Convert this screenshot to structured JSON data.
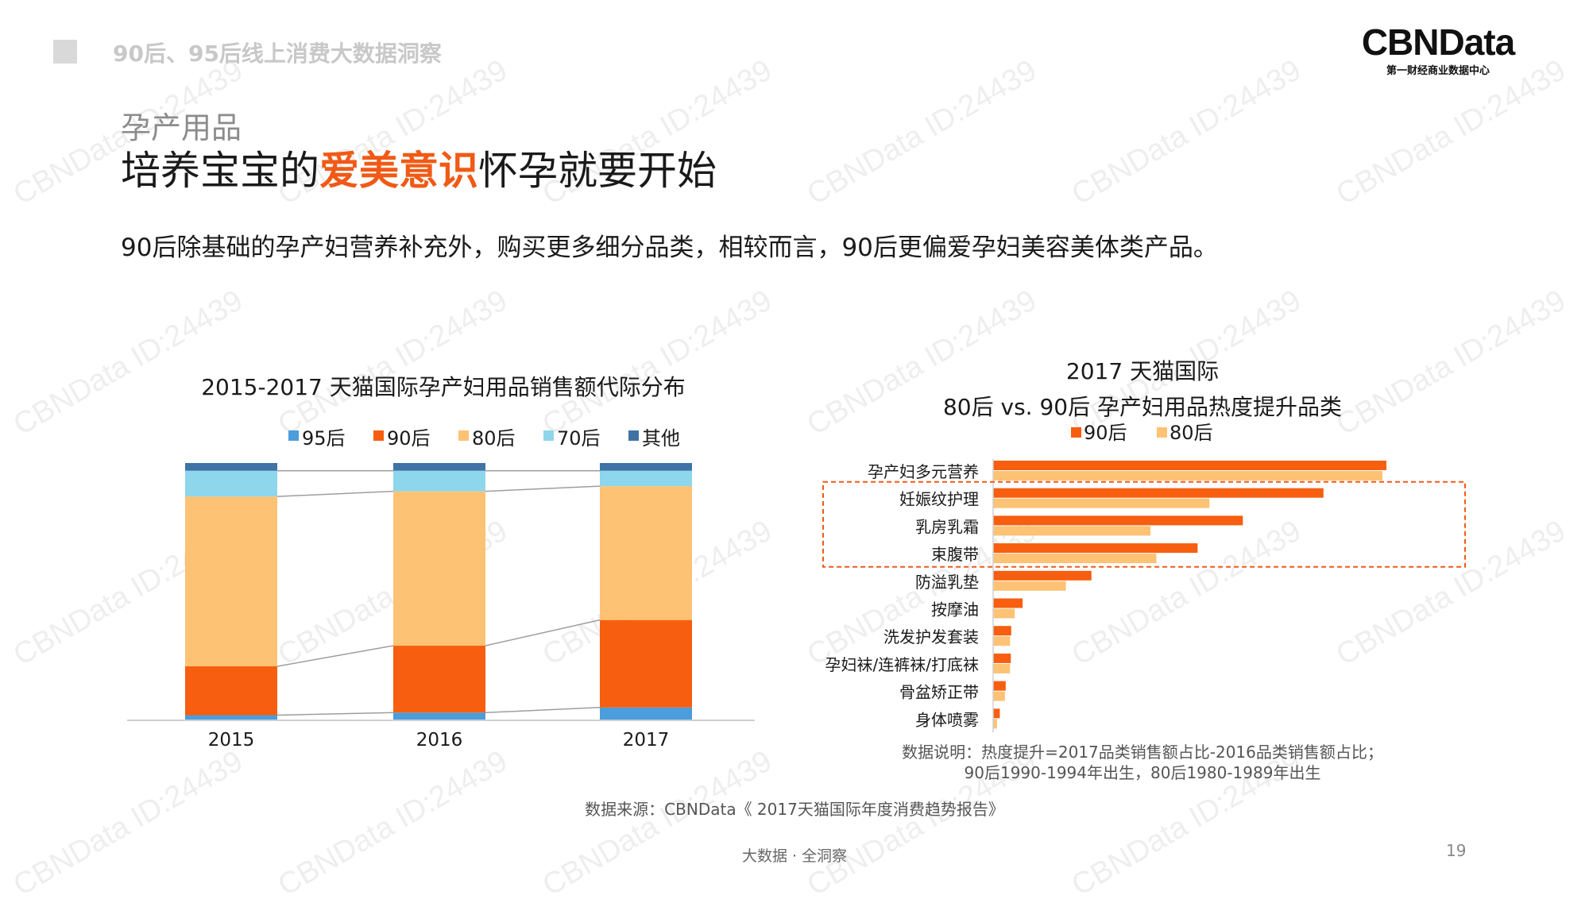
{
  "header": {
    "title": "90后、95后线上消费大数据洞察",
    "logo_text": "CBNData",
    "logo_subtitle": "第一财经商业数据中心"
  },
  "slide": {
    "subtitle": "孕产用品",
    "headline_pre": "培养宝宝的",
    "headline_highlight": "爱美意识",
    "headline_post": "怀孕就要开始",
    "description": "90后除基础的孕产妇营养补充外，购买更多细分品类，相较而言，90后更偏爱孕妇美容美体类产品。"
  },
  "colors": {
    "95后": "#4b9ddb",
    "90后": "#f75e0f",
    "80后": "#fdc274",
    "70后": "#8ed6ec",
    "其他": "#3f73a6",
    "highlight": "#f05a16",
    "box": "#f05a16"
  },
  "chart_data": [
    {
      "type": "bar",
      "stacked": "percent",
      "title": "2015-2017 天猫国际孕产妇用品销售额代际分布",
      "categories": [
        "2015",
        "2016",
        "2017"
      ],
      "legend_position": "top",
      "series": [
        {
          "name": "95后",
          "values": [
            2,
            3,
            5
          ]
        },
        {
          "name": "90后",
          "values": [
            19,
            26,
            34
          ]
        },
        {
          "name": "80后",
          "values": [
            66,
            60,
            52
          ]
        },
        {
          "name": "70后",
          "values": [
            10,
            8,
            6
          ]
        },
        {
          "name": "其他",
          "values": [
            3,
            3,
            3
          ]
        }
      ],
      "ylim": [
        0,
        100
      ]
    },
    {
      "type": "bar",
      "orientation": "horizontal",
      "title": "2017 天猫国际",
      "subtitle": "80后 vs. 90后 孕产妇用品热度提升品类",
      "legend_position": "top",
      "categories": [
        "孕产妇多元营养",
        "妊娠纹护理",
        "乳房乳霜",
        "束腹带",
        "防溢乳垫",
        "按摩油",
        "洗发护发套装",
        "孕妇袜/连裤袜/打底袜",
        "骨盆矫正带",
        "身体喷雾"
      ],
      "series": [
        {
          "name": "90后",
          "values": [
            100,
            84,
            63.5,
            52,
            25,
            7.5,
            4.6,
            4.5,
            3.2,
            1.7
          ]
        },
        {
          "name": "80后",
          "values": [
            99,
            55,
            40,
            41.5,
            18.5,
            5.5,
            4.3,
            4.3,
            3.0,
            1.0
          ]
        }
      ],
      "highlighted_categories": [
        "妊娠纹护理",
        "乳房乳霜",
        "束腹带"
      ],
      "note_line1": "数据说明：热度提升=2017品类销售额占比-2016品类销售额占比；",
      "note_line2": "90后1990-1994年出生，80后1980-1989年出生"
    }
  ],
  "source": "数据来源：CBNData《 2017天猫国际年度消费趋势报告》",
  "footer": "大数据 · 全洞察",
  "page_number": "19",
  "watermark_text": "CBNData ID:24439"
}
